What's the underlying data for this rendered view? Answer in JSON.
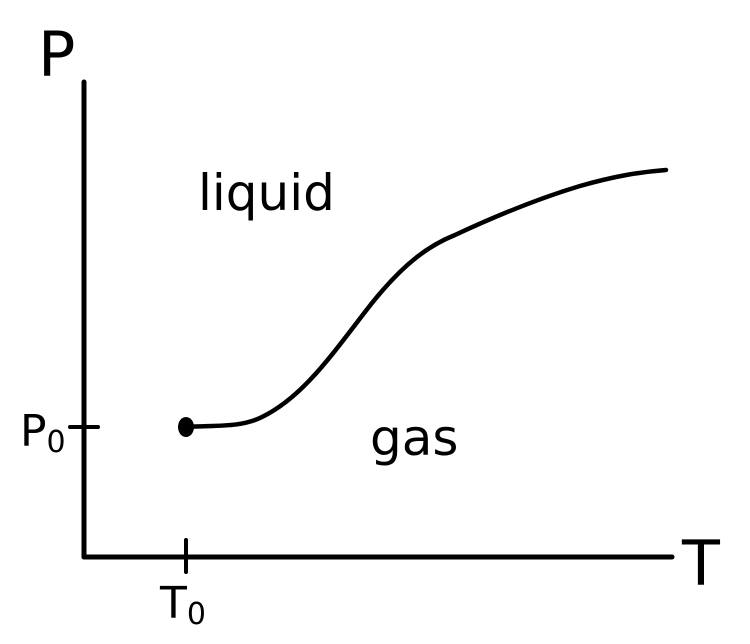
{
  "axes": {
    "y_label": "P",
    "x_label": "T"
  },
  "ticks": {
    "pressure_label": "P",
    "pressure_subscript": "0",
    "temperature_label": "T",
    "temperature_subscript": "0"
  },
  "regions": {
    "upper": "liquid",
    "lower": "gas"
  },
  "colors": {
    "ink": "#000000",
    "background": "#ffffff"
  }
}
